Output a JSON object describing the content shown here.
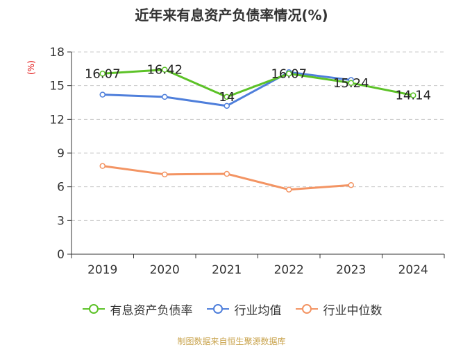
{
  "title": "近年来有息资产负债率情况(%)",
  "ylabel": "(%)",
  "source": "制图数据来自恒生聚源数据库",
  "chart_data": {
    "type": "line",
    "title": "近年来有息资产负债率情况(%)",
    "xlabel": "",
    "ylabel": "(%)",
    "categories": [
      "2019",
      "2020",
      "2021",
      "2022",
      "2023",
      "2024"
    ],
    "ylim": [
      0,
      18
    ],
    "yticks": [
      0,
      3,
      6,
      9,
      12,
      15,
      18
    ],
    "grid": "horizontal-dashed",
    "legend_position": "bottom",
    "series": [
      {
        "name": "有息资产负债率",
        "color": "#5cc227",
        "values": [
          16.07,
          16.42,
          14,
          16.07,
          15.24,
          14.14
        ],
        "labels": [
          "16.07",
          "16.42",
          "14",
          "16.07",
          "15.24",
          "14.14"
        ]
      },
      {
        "name": "行业均值",
        "color": "#4f7fdb",
        "values": [
          14.2,
          14.0,
          13.2,
          16.2,
          15.5,
          null
        ]
      },
      {
        "name": "行业中位数",
        "color": "#f39463",
        "values": [
          7.85,
          7.1,
          7.15,
          5.75,
          6.15,
          null
        ]
      }
    ]
  }
}
